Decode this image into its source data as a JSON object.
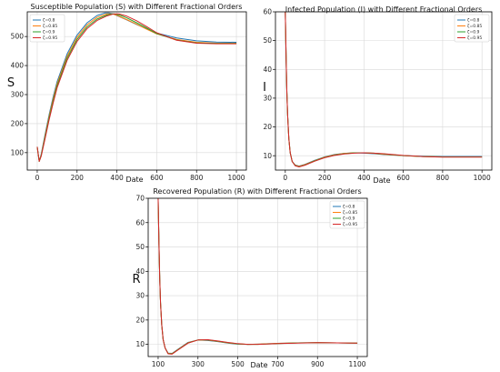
{
  "colors": {
    "series": [
      "#1f77b4",
      "#ff7f0e",
      "#2ca02c",
      "#d62728"
    ],
    "grid": "#d8d8d8",
    "axis": "#000000"
  },
  "chart_data": [
    {
      "type": "line",
      "title": "Susceptible Population (S) with Different Fractional Orders",
      "xlabel": "Date",
      "ylabel": "S",
      "xlim": [
        -50,
        1050
      ],
      "ylim": [
        40,
        585
      ],
      "xticks": [
        0,
        200,
        400,
        600,
        800,
        1000
      ],
      "yticks": [
        100,
        200,
        300,
        400,
        500
      ],
      "grid": true,
      "legend": "top-left",
      "series": [
        {
          "name": "ζ=0.8",
          "x": [
            0,
            10,
            20,
            40,
            60,
            80,
            100,
            150,
            200,
            250,
            300,
            340,
            360,
            380,
            400,
            420,
            450,
            500,
            550,
            600,
            700,
            800,
            900,
            1000
          ],
          "y": [
            120,
            70,
            95,
            165,
            232,
            292,
            345,
            440,
            505,
            547,
            572,
            581,
            581,
            578,
            572,
            566,
            557,
            541,
            526,
            512,
            495,
            485,
            481,
            480
          ]
        },
        {
          "name": "ζ=0.85",
          "x": [
            0,
            10,
            20,
            40,
            60,
            80,
            100,
            150,
            200,
            250,
            300,
            350,
            370,
            380,
            400,
            420,
            450,
            500,
            550,
            600,
            700,
            800,
            900,
            1000
          ],
          "y": [
            120,
            70,
            92,
            160,
            226,
            285,
            338,
            432,
            497,
            540,
            566,
            578,
            578,
            577,
            573,
            567,
            558,
            542,
            525,
            509,
            490,
            480,
            477,
            477
          ]
        },
        {
          "name": "ζ=0.9",
          "x": [
            0,
            10,
            20,
            40,
            60,
            80,
            100,
            150,
            200,
            250,
            300,
            350,
            380,
            390,
            400,
            420,
            450,
            500,
            550,
            600,
            700,
            800,
            900,
            1000
          ],
          "y": [
            120,
            70,
            90,
            155,
            220,
            278,
            331,
            425,
            490,
            533,
            560,
            574,
            578,
            578,
            576,
            572,
            564,
            547,
            529,
            510,
            488,
            478,
            476,
            476
          ]
        },
        {
          "name": "ζ=0.95",
          "x": [
            0,
            10,
            20,
            40,
            60,
            80,
            100,
            150,
            200,
            250,
            300,
            350,
            380,
            400,
            410,
            420,
            450,
            500,
            550,
            600,
            700,
            800,
            900,
            1000
          ],
          "y": [
            120,
            70,
            88,
            150,
            214,
            271,
            324,
            418,
            483,
            527,
            555,
            571,
            577,
            578,
            578,
            576,
            570,
            554,
            534,
            513,
            487,
            477,
            475,
            475
          ]
        }
      ]
    },
    {
      "type": "line",
      "title": "Infected Population (I) with Different Fractional Orders",
      "xlabel": "Date",
      "ylabel": "I",
      "xlim": [
        -50,
        1050
      ],
      "ylim": [
        5,
        60
      ],
      "xticks": [
        0,
        200,
        400,
        600,
        800,
        1000
      ],
      "yticks": [
        10,
        20,
        30,
        40,
        50,
        60
      ],
      "grid": true,
      "legend": "top-right",
      "series": [
        {
          "name": "ζ=0.8",
          "x": [
            0,
            4,
            8,
            12,
            18,
            25,
            35,
            50,
            70,
            100,
            150,
            200,
            250,
            300,
            350,
            400,
            450,
            500,
            600,
            700,
            800,
            900,
            1000
          ],
          "y": [
            60,
            45,
            32,
            24,
            16,
            11,
            8,
            6.8,
            6.4,
            7.0,
            8.4,
            9.6,
            10.4,
            10.8,
            11.0,
            10.9,
            10.7,
            10.4,
            10.0,
            9.8,
            9.7,
            9.7,
            9.7
          ]
        },
        {
          "name": "ζ=0.85",
          "x": [
            0,
            4,
            8,
            12,
            18,
            25,
            35,
            50,
            70,
            100,
            150,
            200,
            250,
            300,
            350,
            400,
            450,
            500,
            600,
            700,
            800,
            900,
            1000
          ],
          "y": [
            60,
            45,
            32,
            24,
            16,
            11,
            8,
            6.7,
            6.3,
            6.9,
            8.3,
            9.5,
            10.3,
            10.8,
            11.0,
            11.0,
            10.8,
            10.5,
            10.0,
            9.7,
            9.6,
            9.6,
            9.6
          ]
        },
        {
          "name": "ζ=0.9",
          "x": [
            0,
            4,
            8,
            12,
            18,
            25,
            35,
            50,
            70,
            100,
            150,
            200,
            250,
            300,
            350,
            400,
            450,
            500,
            600,
            700,
            800,
            900,
            1000
          ],
          "y": [
            60,
            45,
            32,
            24,
            16,
            11,
            8,
            6.6,
            6.2,
            6.8,
            8.2,
            9.4,
            10.2,
            10.7,
            11.0,
            11.0,
            10.9,
            10.6,
            10.0,
            9.7,
            9.6,
            9.6,
            9.6
          ]
        },
        {
          "name": "ζ=0.95",
          "x": [
            0,
            4,
            8,
            12,
            18,
            25,
            35,
            50,
            70,
            100,
            150,
            200,
            250,
            300,
            350,
            400,
            450,
            500,
            600,
            700,
            800,
            900,
            1000
          ],
          "y": [
            60,
            45,
            32,
            24,
            16,
            11,
            8,
            6.5,
            6.1,
            6.7,
            8.1,
            9.3,
            10.1,
            10.6,
            10.9,
            11.0,
            10.9,
            10.7,
            10.1,
            9.7,
            9.5,
            9.5,
            9.5
          ]
        }
      ]
    },
    {
      "type": "line",
      "title": "Recovered Population (R) with Different Fractional Orders",
      "xlabel": "Date",
      "ylabel": "R",
      "xlim": [
        50,
        1150
      ],
      "ylim": [
        5,
        70
      ],
      "xticks": [
        100,
        300,
        500,
        700,
        900,
        1100
      ],
      "yticks": [
        10,
        20,
        30,
        40,
        50,
        60,
        70
      ],
      "grid": true,
      "legend": "top-right",
      "series": [
        {
          "name": "ζ=0.8",
          "x": [
            100,
            104,
            108,
            112,
            118,
            125,
            135,
            150,
            170,
            200,
            250,
            300,
            350,
            400,
            450,
            500,
            550,
            600,
            700,
            800,
            900,
            1000,
            1100
          ],
          "y": [
            70,
            52,
            37,
            27,
            18,
            12,
            8.5,
            6.4,
            6.3,
            8.0,
            10.8,
            11.8,
            11.6,
            11.1,
            10.5,
            10.1,
            10.0,
            10.1,
            10.4,
            10.6,
            10.7,
            10.6,
            10.5
          ]
        },
        {
          "name": "ζ=0.85",
          "x": [
            100,
            104,
            108,
            112,
            118,
            125,
            135,
            150,
            170,
            200,
            250,
            300,
            350,
            400,
            450,
            500,
            550,
            600,
            700,
            800,
            900,
            1000,
            1100
          ],
          "y": [
            70,
            52,
            37,
            27,
            18,
            12,
            8.5,
            6.3,
            6.2,
            7.9,
            10.7,
            11.8,
            11.7,
            11.2,
            10.6,
            10.2,
            10.0,
            10.1,
            10.4,
            10.6,
            10.7,
            10.6,
            10.5
          ]
        },
        {
          "name": "ζ=0.9",
          "x": [
            100,
            104,
            108,
            112,
            118,
            125,
            135,
            150,
            170,
            200,
            250,
            300,
            350,
            400,
            450,
            500,
            550,
            600,
            700,
            800,
            900,
            1000,
            1100
          ],
          "y": [
            70,
            52,
            37,
            27,
            18,
            12,
            8.5,
            6.2,
            6.1,
            7.8,
            10.6,
            11.8,
            11.8,
            11.3,
            10.7,
            10.2,
            10.0,
            10.0,
            10.3,
            10.6,
            10.7,
            10.6,
            10.5
          ]
        },
        {
          "name": "ζ=0.95",
          "x": [
            100,
            104,
            108,
            112,
            118,
            125,
            135,
            150,
            170,
            200,
            250,
            300,
            350,
            400,
            450,
            500,
            550,
            600,
            700,
            800,
            900,
            1000,
            1100
          ],
          "y": [
            70,
            52,
            37,
            27,
            18,
            12,
            8.5,
            6.1,
            6.0,
            7.7,
            10.5,
            11.8,
            11.9,
            11.4,
            10.8,
            10.3,
            10.0,
            10.0,
            10.3,
            10.5,
            10.7,
            10.6,
            10.5
          ]
        }
      ]
    }
  ]
}
